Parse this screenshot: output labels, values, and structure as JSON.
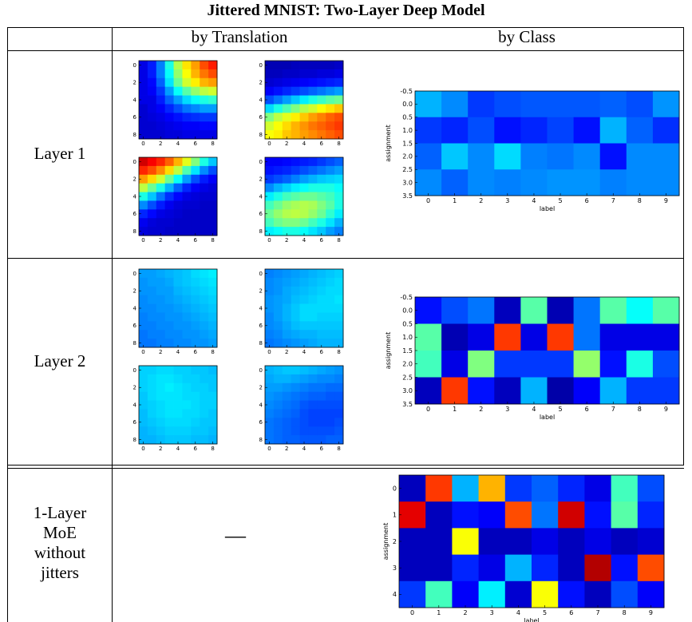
{
  "title": "Jittered MNIST: Two-Layer Deep Model",
  "headers": {
    "translation": "by Translation",
    "class": "by Class"
  },
  "rows": [
    {
      "label_lines": [
        "Layer 1"
      ]
    },
    {
      "label_lines": [
        "Layer 2"
      ]
    },
    {
      "label_lines": [
        "1-Layer",
        "MoE",
        "without",
        "jitters"
      ],
      "translation_placeholder": "—"
    }
  ],
  "colormap": "jet",
  "chart_data": [
    {
      "id": "l1-t1",
      "type": "heatmap",
      "xticks": [
        0,
        2,
        4,
        6,
        8
      ],
      "yticks": [
        0,
        2,
        4,
        6,
        8
      ],
      "z": [
        [
          0.1,
          0.15,
          0.25,
          0.4,
          0.55,
          0.65,
          0.72,
          0.8,
          0.85
        ],
        [
          0.1,
          0.15,
          0.25,
          0.38,
          0.52,
          0.62,
          0.7,
          0.76,
          0.8
        ],
        [
          0.1,
          0.13,
          0.22,
          0.35,
          0.48,
          0.58,
          0.64,
          0.7,
          0.72
        ],
        [
          0.1,
          0.12,
          0.18,
          0.28,
          0.38,
          0.46,
          0.52,
          0.56,
          0.58
        ],
        [
          0.1,
          0.1,
          0.15,
          0.22,
          0.28,
          0.34,
          0.38,
          0.4,
          0.42
        ],
        [
          0.08,
          0.1,
          0.12,
          0.16,
          0.2,
          0.24,
          0.26,
          0.28,
          0.28
        ],
        [
          0.08,
          0.09,
          0.1,
          0.12,
          0.14,
          0.16,
          0.17,
          0.18,
          0.18
        ],
        [
          0.08,
          0.08,
          0.09,
          0.1,
          0.11,
          0.12,
          0.12,
          0.13,
          0.13
        ],
        [
          0.08,
          0.08,
          0.08,
          0.09,
          0.09,
          0.1,
          0.1,
          0.1,
          0.1
        ]
      ]
    },
    {
      "id": "l1-t2",
      "type": "heatmap",
      "xticks": [
        0,
        2,
        4,
        6,
        8
      ],
      "yticks": [
        0,
        2,
        4,
        6,
        8
      ],
      "z": [
        [
          0.05,
          0.05,
          0.05,
          0.06,
          0.06,
          0.06,
          0.06,
          0.06,
          0.07
        ],
        [
          0.06,
          0.06,
          0.07,
          0.07,
          0.08,
          0.08,
          0.09,
          0.09,
          0.1
        ],
        [
          0.08,
          0.09,
          0.1,
          0.11,
          0.12,
          0.13,
          0.14,
          0.15,
          0.16
        ],
        [
          0.12,
          0.14,
          0.16,
          0.18,
          0.2,
          0.22,
          0.24,
          0.26,
          0.28
        ],
        [
          0.2,
          0.24,
          0.28,
          0.32,
          0.36,
          0.4,
          0.43,
          0.46,
          0.48
        ],
        [
          0.34,
          0.4,
          0.45,
          0.5,
          0.55,
          0.58,
          0.62,
          0.65,
          0.68
        ],
        [
          0.5,
          0.56,
          0.6,
          0.64,
          0.68,
          0.72,
          0.75,
          0.78,
          0.8
        ],
        [
          0.58,
          0.62,
          0.66,
          0.7,
          0.73,
          0.76,
          0.78,
          0.8,
          0.82
        ],
        [
          0.62,
          0.64,
          0.68,
          0.7,
          0.72,
          0.74,
          0.76,
          0.78,
          0.8
        ]
      ]
    },
    {
      "id": "l1-t3",
      "type": "heatmap",
      "xticks": [
        0,
        2,
        4,
        6,
        8
      ],
      "yticks": [
        0,
        2,
        4,
        6,
        8
      ],
      "z": [
        [
          0.92,
          0.88,
          0.84,
          0.78,
          0.7,
          0.6,
          0.5,
          0.4,
          0.32
        ],
        [
          0.84,
          0.8,
          0.74,
          0.66,
          0.56,
          0.45,
          0.35,
          0.26,
          0.2
        ],
        [
          0.72,
          0.66,
          0.58,
          0.48,
          0.38,
          0.28,
          0.2,
          0.15,
          0.12
        ],
        [
          0.56,
          0.48,
          0.4,
          0.3,
          0.22,
          0.16,
          0.12,
          0.1,
          0.09
        ],
        [
          0.4,
          0.32,
          0.24,
          0.17,
          0.13,
          0.1,
          0.09,
          0.08,
          0.08
        ],
        [
          0.26,
          0.2,
          0.15,
          0.11,
          0.09,
          0.08,
          0.08,
          0.07,
          0.07
        ],
        [
          0.16,
          0.13,
          0.1,
          0.09,
          0.08,
          0.07,
          0.07,
          0.07,
          0.07
        ],
        [
          0.11,
          0.09,
          0.08,
          0.08,
          0.07,
          0.07,
          0.07,
          0.07,
          0.07
        ],
        [
          0.09,
          0.08,
          0.08,
          0.07,
          0.07,
          0.07,
          0.07,
          0.07,
          0.07
        ]
      ]
    },
    {
      "id": "l1-t4",
      "type": "heatmap",
      "xticks": [
        0,
        2,
        4,
        6,
        8
      ],
      "yticks": [
        0,
        2,
        4,
        6,
        8
      ],
      "z": [
        [
          0.12,
          0.12,
          0.13,
          0.14,
          0.15,
          0.16,
          0.18,
          0.2,
          0.22
        ],
        [
          0.14,
          0.15,
          0.16,
          0.18,
          0.2,
          0.22,
          0.24,
          0.26,
          0.28
        ],
        [
          0.18,
          0.2,
          0.22,
          0.25,
          0.28,
          0.3,
          0.32,
          0.33,
          0.34
        ],
        [
          0.26,
          0.3,
          0.33,
          0.36,
          0.38,
          0.4,
          0.4,
          0.4,
          0.38
        ],
        [
          0.36,
          0.4,
          0.44,
          0.46,
          0.48,
          0.48,
          0.46,
          0.44,
          0.4
        ],
        [
          0.44,
          0.48,
          0.52,
          0.54,
          0.55,
          0.54,
          0.5,
          0.46,
          0.4
        ],
        [
          0.48,
          0.52,
          0.55,
          0.56,
          0.55,
          0.52,
          0.48,
          0.42,
          0.36
        ],
        [
          0.44,
          0.48,
          0.5,
          0.5,
          0.48,
          0.44,
          0.4,
          0.35,
          0.3
        ],
        [
          0.36,
          0.38,
          0.4,
          0.4,
          0.38,
          0.35,
          0.32,
          0.28,
          0.25
        ]
      ]
    },
    {
      "id": "l2-t1",
      "type": "heatmap",
      "xticks": [
        0,
        2,
        4,
        6,
        8
      ],
      "yticks": [
        0,
        2,
        4,
        6,
        8
      ],
      "z": [
        [
          0.28,
          0.28,
          0.29,
          0.3,
          0.31,
          0.32,
          0.34,
          0.35,
          0.36
        ],
        [
          0.27,
          0.28,
          0.28,
          0.29,
          0.31,
          0.32,
          0.33,
          0.34,
          0.35
        ],
        [
          0.27,
          0.27,
          0.28,
          0.28,
          0.3,
          0.31,
          0.32,
          0.33,
          0.34
        ],
        [
          0.26,
          0.27,
          0.27,
          0.28,
          0.29,
          0.3,
          0.31,
          0.32,
          0.33
        ],
        [
          0.26,
          0.26,
          0.27,
          0.27,
          0.28,
          0.29,
          0.3,
          0.31,
          0.32
        ],
        [
          0.25,
          0.26,
          0.26,
          0.27,
          0.27,
          0.28,
          0.29,
          0.3,
          0.31
        ],
        [
          0.25,
          0.25,
          0.26,
          0.26,
          0.27,
          0.27,
          0.28,
          0.29,
          0.3
        ],
        [
          0.24,
          0.25,
          0.25,
          0.26,
          0.26,
          0.27,
          0.27,
          0.28,
          0.29
        ],
        [
          0.24,
          0.24,
          0.25,
          0.25,
          0.26,
          0.26,
          0.27,
          0.27,
          0.28
        ]
      ]
    },
    {
      "id": "l2-t2",
      "type": "heatmap",
      "xticks": [
        0,
        2,
        4,
        6,
        8
      ],
      "yticks": [
        0,
        2,
        4,
        6,
        8
      ],
      "z": [
        [
          0.25,
          0.26,
          0.27,
          0.28,
          0.29,
          0.3,
          0.31,
          0.32,
          0.33
        ],
        [
          0.26,
          0.27,
          0.28,
          0.29,
          0.3,
          0.31,
          0.32,
          0.33,
          0.34
        ],
        [
          0.26,
          0.27,
          0.29,
          0.3,
          0.31,
          0.32,
          0.33,
          0.34,
          0.34
        ],
        [
          0.27,
          0.28,
          0.29,
          0.31,
          0.32,
          0.33,
          0.34,
          0.34,
          0.35
        ],
        [
          0.27,
          0.28,
          0.3,
          0.32,
          0.34,
          0.34,
          0.34,
          0.34,
          0.34
        ],
        [
          0.26,
          0.28,
          0.3,
          0.32,
          0.34,
          0.34,
          0.33,
          0.33,
          0.33
        ],
        [
          0.26,
          0.27,
          0.29,
          0.31,
          0.32,
          0.32,
          0.32,
          0.32,
          0.32
        ],
        [
          0.25,
          0.26,
          0.28,
          0.29,
          0.3,
          0.3,
          0.31,
          0.31,
          0.31
        ],
        [
          0.24,
          0.25,
          0.26,
          0.27,
          0.28,
          0.29,
          0.3,
          0.3,
          0.3
        ]
      ]
    },
    {
      "id": "l2-t3",
      "type": "heatmap",
      "xticks": [
        0,
        2,
        4,
        6,
        8
      ],
      "yticks": [
        0,
        2,
        4,
        6,
        8
      ],
      "z": [
        [
          0.33,
          0.33,
          0.34,
          0.34,
          0.33,
          0.33,
          0.32,
          0.32,
          0.31
        ],
        [
          0.33,
          0.34,
          0.35,
          0.35,
          0.34,
          0.33,
          0.33,
          0.32,
          0.32
        ],
        [
          0.33,
          0.34,
          0.35,
          0.36,
          0.35,
          0.34,
          0.33,
          0.33,
          0.32
        ],
        [
          0.32,
          0.34,
          0.35,
          0.35,
          0.35,
          0.34,
          0.34,
          0.33,
          0.33
        ],
        [
          0.32,
          0.33,
          0.34,
          0.35,
          0.35,
          0.35,
          0.34,
          0.33,
          0.33
        ],
        [
          0.31,
          0.33,
          0.34,
          0.35,
          0.35,
          0.34,
          0.34,
          0.33,
          0.32
        ],
        [
          0.31,
          0.32,
          0.33,
          0.34,
          0.34,
          0.34,
          0.33,
          0.32,
          0.32
        ],
        [
          0.3,
          0.31,
          0.32,
          0.33,
          0.33,
          0.33,
          0.32,
          0.32,
          0.31
        ],
        [
          0.3,
          0.3,
          0.31,
          0.32,
          0.32,
          0.32,
          0.31,
          0.31,
          0.3
        ]
      ]
    },
    {
      "id": "l2-t4",
      "type": "heatmap",
      "xticks": [
        0,
        2,
        4,
        6,
        8
      ],
      "yticks": [
        0,
        2,
        4,
        6,
        8
      ],
      "z": [
        [
          0.3,
          0.31,
          0.32,
          0.32,
          0.31,
          0.3,
          0.29,
          0.28,
          0.27
        ],
        [
          0.29,
          0.3,
          0.3,
          0.29,
          0.28,
          0.27,
          0.26,
          0.26,
          0.25
        ],
        [
          0.28,
          0.28,
          0.27,
          0.26,
          0.25,
          0.24,
          0.24,
          0.23,
          0.23
        ],
        [
          0.27,
          0.26,
          0.25,
          0.24,
          0.23,
          0.22,
          0.22,
          0.21,
          0.21
        ],
        [
          0.26,
          0.25,
          0.24,
          0.23,
          0.21,
          0.2,
          0.2,
          0.2,
          0.2
        ],
        [
          0.25,
          0.24,
          0.23,
          0.22,
          0.2,
          0.19,
          0.19,
          0.19,
          0.19
        ],
        [
          0.24,
          0.23,
          0.22,
          0.21,
          0.2,
          0.19,
          0.19,
          0.19,
          0.2
        ],
        [
          0.24,
          0.23,
          0.22,
          0.21,
          0.2,
          0.2,
          0.2,
          0.2,
          0.21
        ],
        [
          0.24,
          0.23,
          0.22,
          0.22,
          0.21,
          0.21,
          0.21,
          0.22,
          0.22
        ]
      ]
    },
    {
      "id": "l1-class",
      "type": "heatmap",
      "xlabel": "label",
      "ylabel": "assignment",
      "xticks": [
        0,
        1,
        2,
        3,
        4,
        5,
        6,
        7,
        8,
        9
      ],
      "yticks": [
        -0.5,
        0.0,
        0.5,
        1.0,
        1.5,
        2.0,
        2.5,
        3.0,
        3.5
      ],
      "z": [
        [
          0.3,
          0.26,
          0.18,
          0.2,
          0.21,
          0.21,
          0.21,
          0.22,
          0.2,
          0.27
        ],
        [
          0.18,
          0.16,
          0.2,
          0.14,
          0.16,
          0.19,
          0.14,
          0.3,
          0.22,
          0.17
        ],
        [
          0.22,
          0.32,
          0.26,
          0.34,
          0.25,
          0.24,
          0.26,
          0.14,
          0.26,
          0.26
        ],
        [
          0.26,
          0.22,
          0.26,
          0.25,
          0.26,
          0.27,
          0.27,
          0.25,
          0.26,
          0.26
        ]
      ]
    },
    {
      "id": "l2-class",
      "type": "heatmap",
      "xlabel": "label",
      "ylabel": "assignment",
      "xticks": [
        0,
        1,
        2,
        3,
        4,
        5,
        6,
        7,
        8,
        9
      ],
      "yticks": [
        -0.5,
        0.0,
        0.5,
        1.0,
        1.5,
        2.0,
        2.5,
        3.0,
        3.5
      ],
      "z": [
        [
          0.14,
          0.2,
          0.24,
          0.06,
          0.46,
          0.05,
          0.24,
          0.46,
          0.38,
          0.46
        ],
        [
          0.46,
          0.05,
          0.1,
          0.82,
          0.1,
          0.82,
          0.24,
          0.1,
          0.1,
          0.1
        ],
        [
          0.44,
          0.1,
          0.5,
          0.18,
          0.18,
          0.18,
          0.52,
          0.14,
          0.4,
          0.2
        ],
        [
          0.06,
          0.82,
          0.14,
          0.06,
          0.3,
          0.04,
          0.12,
          0.3,
          0.18,
          0.18
        ]
      ]
    },
    {
      "id": "moe-class",
      "type": "heatmap",
      "xlabel": "label",
      "ylabel": "assignment",
      "xticks": [
        0,
        1,
        2,
        3,
        4,
        5,
        6,
        7,
        8,
        9
      ],
      "yticks": [
        0,
        1,
        2,
        3,
        4
      ],
      "z": [
        [
          0.06,
          0.82,
          0.3,
          0.7,
          0.18,
          0.22,
          0.16,
          0.1,
          0.44,
          0.2
        ],
        [
          0.9,
          0.06,
          0.14,
          0.12,
          0.8,
          0.24,
          0.92,
          0.14,
          0.46,
          0.16
        ],
        [
          0.06,
          0.06,
          0.62,
          0.06,
          0.06,
          0.1,
          0.06,
          0.1,
          0.06,
          0.08
        ],
        [
          0.06,
          0.06,
          0.16,
          0.1,
          0.3,
          0.16,
          0.06,
          0.95,
          0.14,
          0.8
        ],
        [
          0.18,
          0.44,
          0.12,
          0.36,
          0.08,
          0.62,
          0.14,
          0.06,
          0.2,
          0.12
        ]
      ]
    }
  ]
}
